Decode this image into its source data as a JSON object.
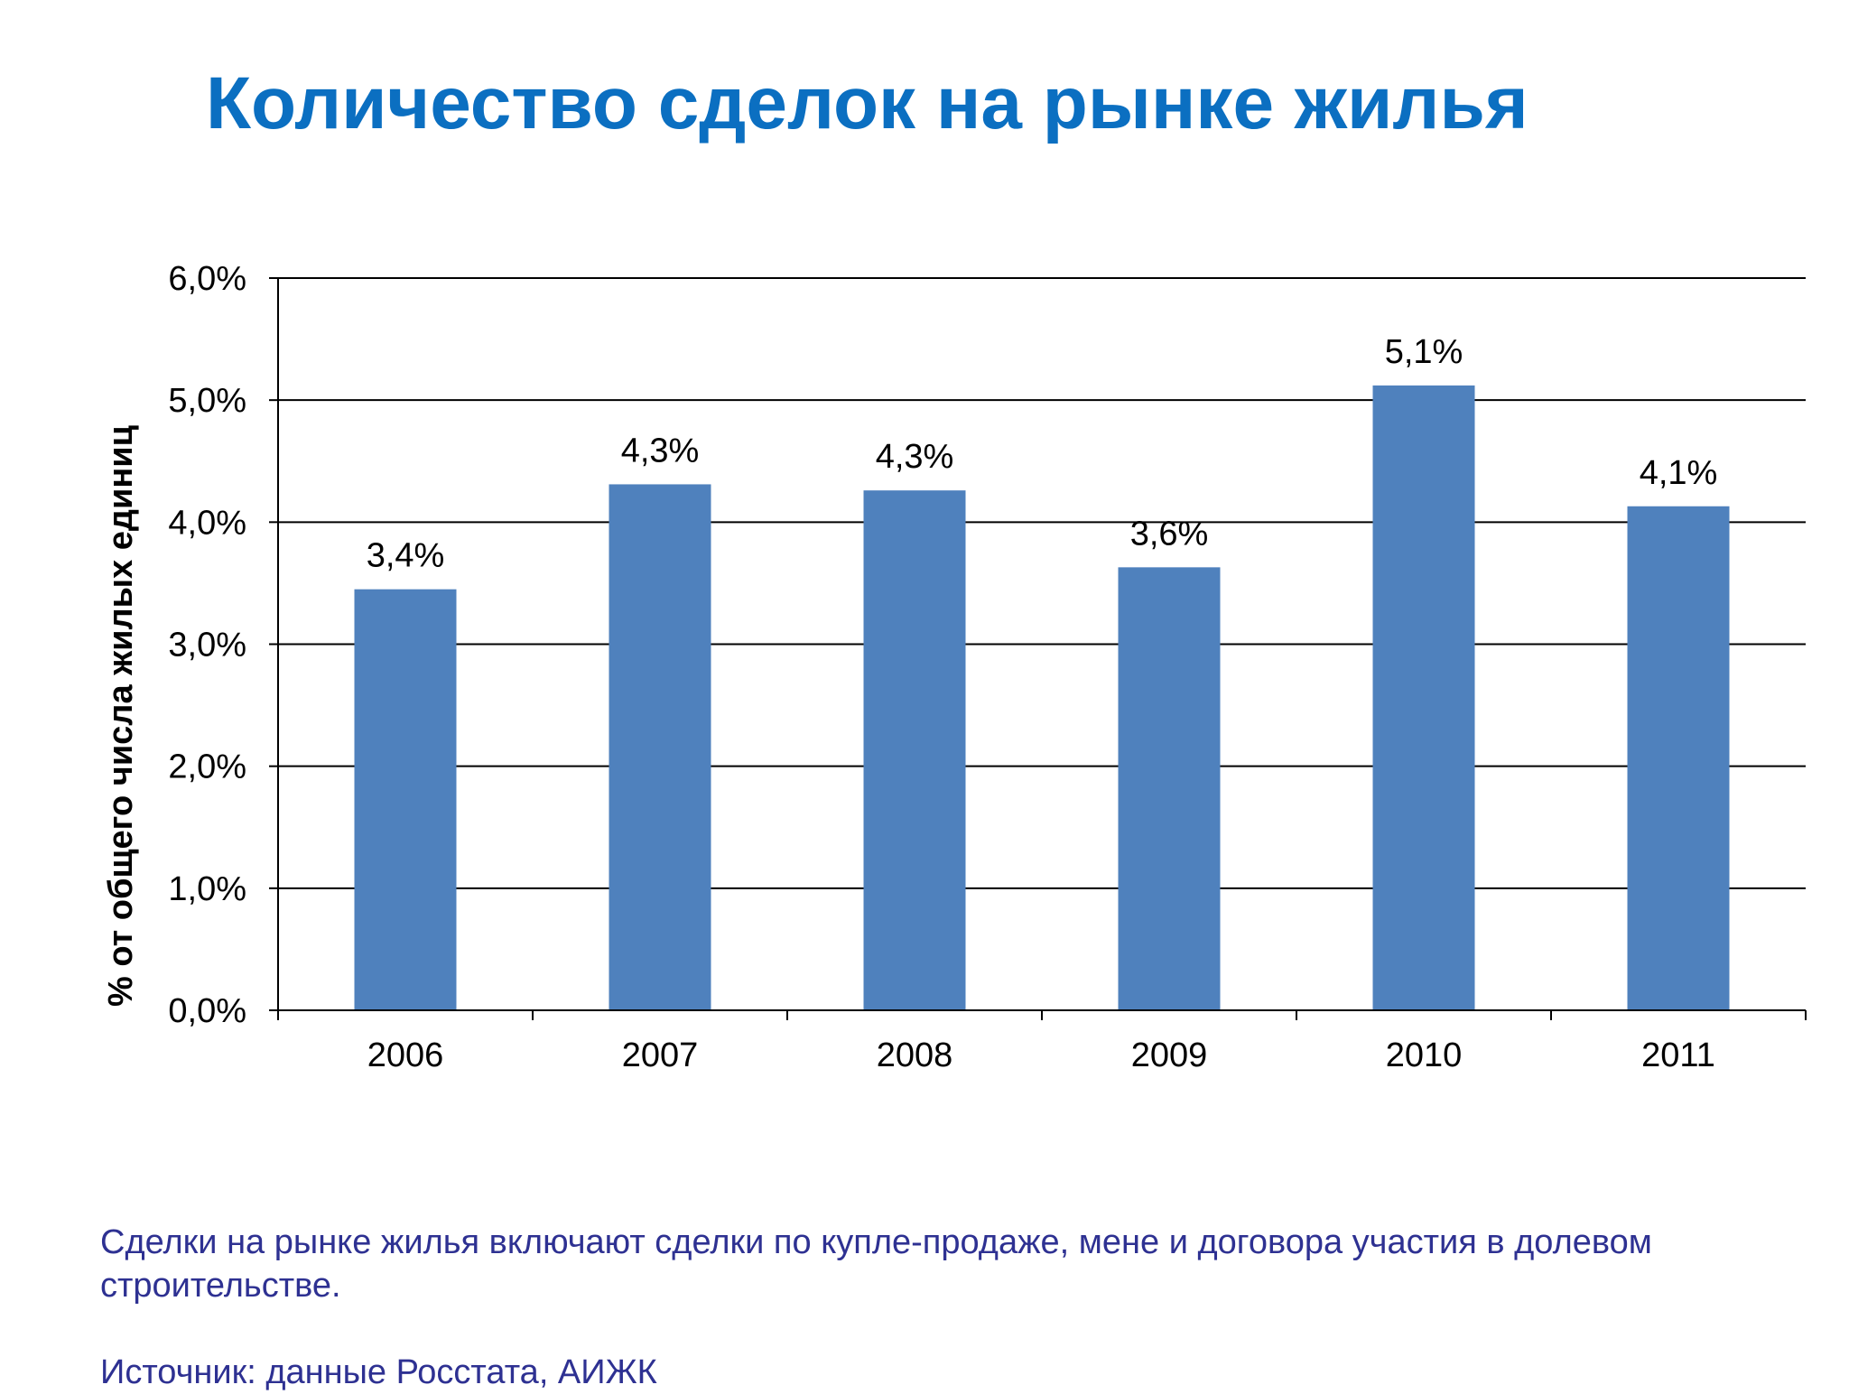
{
  "slide": {
    "title": "Количество сделок на рынке жилья",
    "note": "Сделки на рынке жилья включают сделки по купле-продаже, мене и договора участия в долевом строительстве.",
    "source": "Источник: данные Росстата, АИЖК"
  },
  "chart_data": {
    "type": "bar",
    "categories": [
      "2006",
      "2007",
      "2008",
      "2009",
      "2010",
      "2011"
    ],
    "values": [
      3.45,
      4.31,
      4.26,
      3.63,
      5.12,
      4.13
    ],
    "data_labels": [
      "3,4%",
      "4,3%",
      "4,3%",
      "3,6%",
      "5,1%",
      "4,1%"
    ],
    "ylabel": "% от общего числа жилых единиц",
    "xlabel": "",
    "ylim": [
      0,
      6
    ],
    "yticks": [
      0,
      1,
      2,
      3,
      4,
      5,
      6
    ],
    "ytick_labels": [
      "0,0%",
      "1,0%",
      "2,0%",
      "3,0%",
      "4,0%",
      "5,0%",
      "6,0%"
    ],
    "grid": true,
    "legend": "none",
    "bar_color": "#4f81bd"
  }
}
